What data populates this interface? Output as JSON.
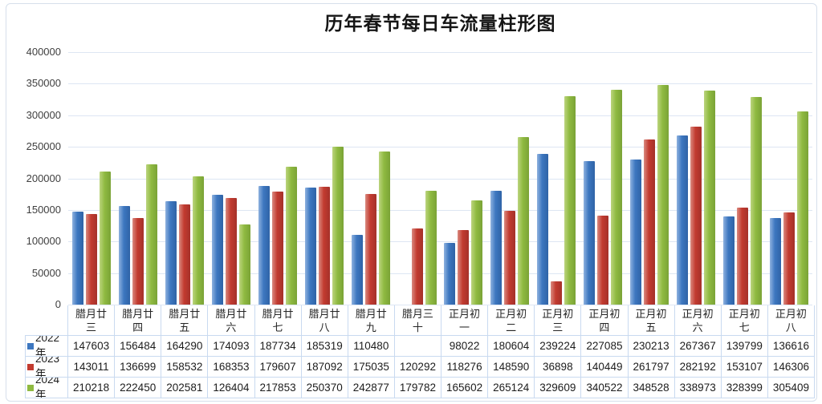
{
  "title": "历年春节每日车流量柱形图",
  "chart_data": {
    "type": "bar",
    "title": "历年春节每日车流量柱形图",
    "xlabel": "",
    "ylabel": "",
    "ylim": [
      0,
      400000
    ],
    "ytick_step": 50000,
    "grid": true,
    "legend_position": "table-left",
    "gridline_color": "#dde6f3",
    "table_border_color": "#c9daf0",
    "categories": [
      "腊月廿三",
      "腊月廿四",
      "腊月廿五",
      "腊月廿六",
      "腊月廿七",
      "腊月廿八",
      "腊月廿九",
      "腊月三十",
      "正月初一",
      "正月初二",
      "正月初三",
      "正月初四",
      "正月初五",
      "正月初六",
      "正月初七",
      "正月初八"
    ],
    "series": [
      {
        "name": "2022年",
        "color": "#3D77C0",
        "color_light": "#8FB2DF",
        "color_dark": "#2F63A6",
        "values": [
          147603,
          156484,
          164290,
          174093,
          187734,
          185319,
          110480,
          null,
          98022,
          180604,
          239224,
          227085,
          230213,
          267367,
          139799,
          136616
        ]
      },
      {
        "name": "2023年",
        "color": "#C23B30",
        "color_light": "#DA8A80",
        "color_dark": "#A5312A",
        "values": [
          143011,
          136699,
          158532,
          168353,
          179607,
          187092,
          175035,
          120292,
          118276,
          148590,
          36898,
          140449,
          261797,
          282192,
          153107,
          146306
        ]
      },
      {
        "name": "2024年",
        "color": "#8FBA41",
        "color_light": "#BCD47E",
        "color_dark": "#7AA336",
        "values": [
          210218,
          222450,
          202581,
          126404,
          217853,
          250370,
          242877,
          179782,
          165602,
          265124,
          329609,
          340522,
          348528,
          338973,
          328399,
          305409
        ]
      }
    ]
  }
}
